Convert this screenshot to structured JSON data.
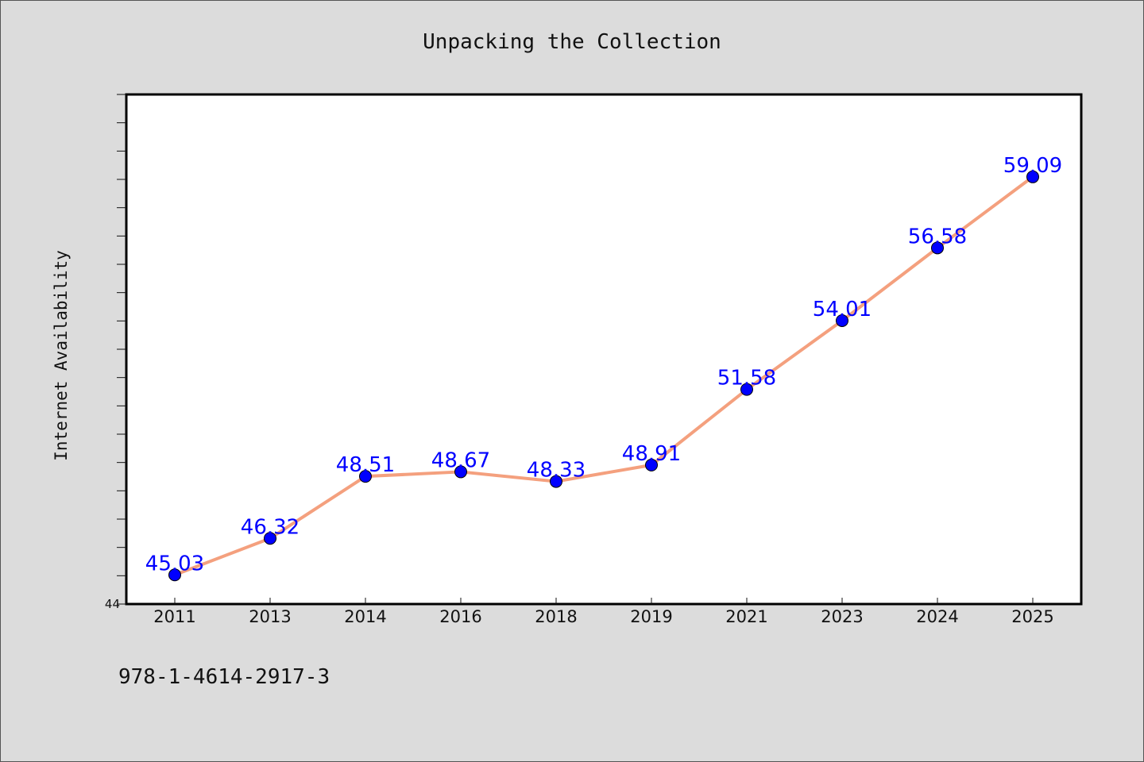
{
  "chart_data": {
    "type": "line",
    "title": "Unpacking the Collection",
    "xlabel": "",
    "ylabel": "Internet Availability",
    "categories": [
      "2011",
      "2013",
      "2014",
      "2016",
      "2018",
      "2019",
      "2021",
      "2023",
      "2024",
      "2025"
    ],
    "series": [
      {
        "values": [
          45.03,
          46.32,
          48.51,
          48.67,
          48.33,
          48.91,
          51.58,
          54.01,
          56.58,
          59.09
        ],
        "labels": [
          "45.03",
          "46.32",
          "48.51",
          "48.67",
          "48.33",
          "48.91",
          "51.58",
          "54.01",
          "56.58",
          "59.09"
        ]
      }
    ],
    "ylim": [
      44,
      62
    ],
    "yticks_labeled": [
      "44"
    ],
    "grid": false,
    "legend": "none",
    "line_color": "#f4a07e",
    "marker_color": "#0000ff",
    "label_color": "#0000ff"
  },
  "footnote": "978-1-4614-2917-3",
  "colors": {
    "background": "#dcdcdc",
    "plot_background": "#ffffff"
  }
}
